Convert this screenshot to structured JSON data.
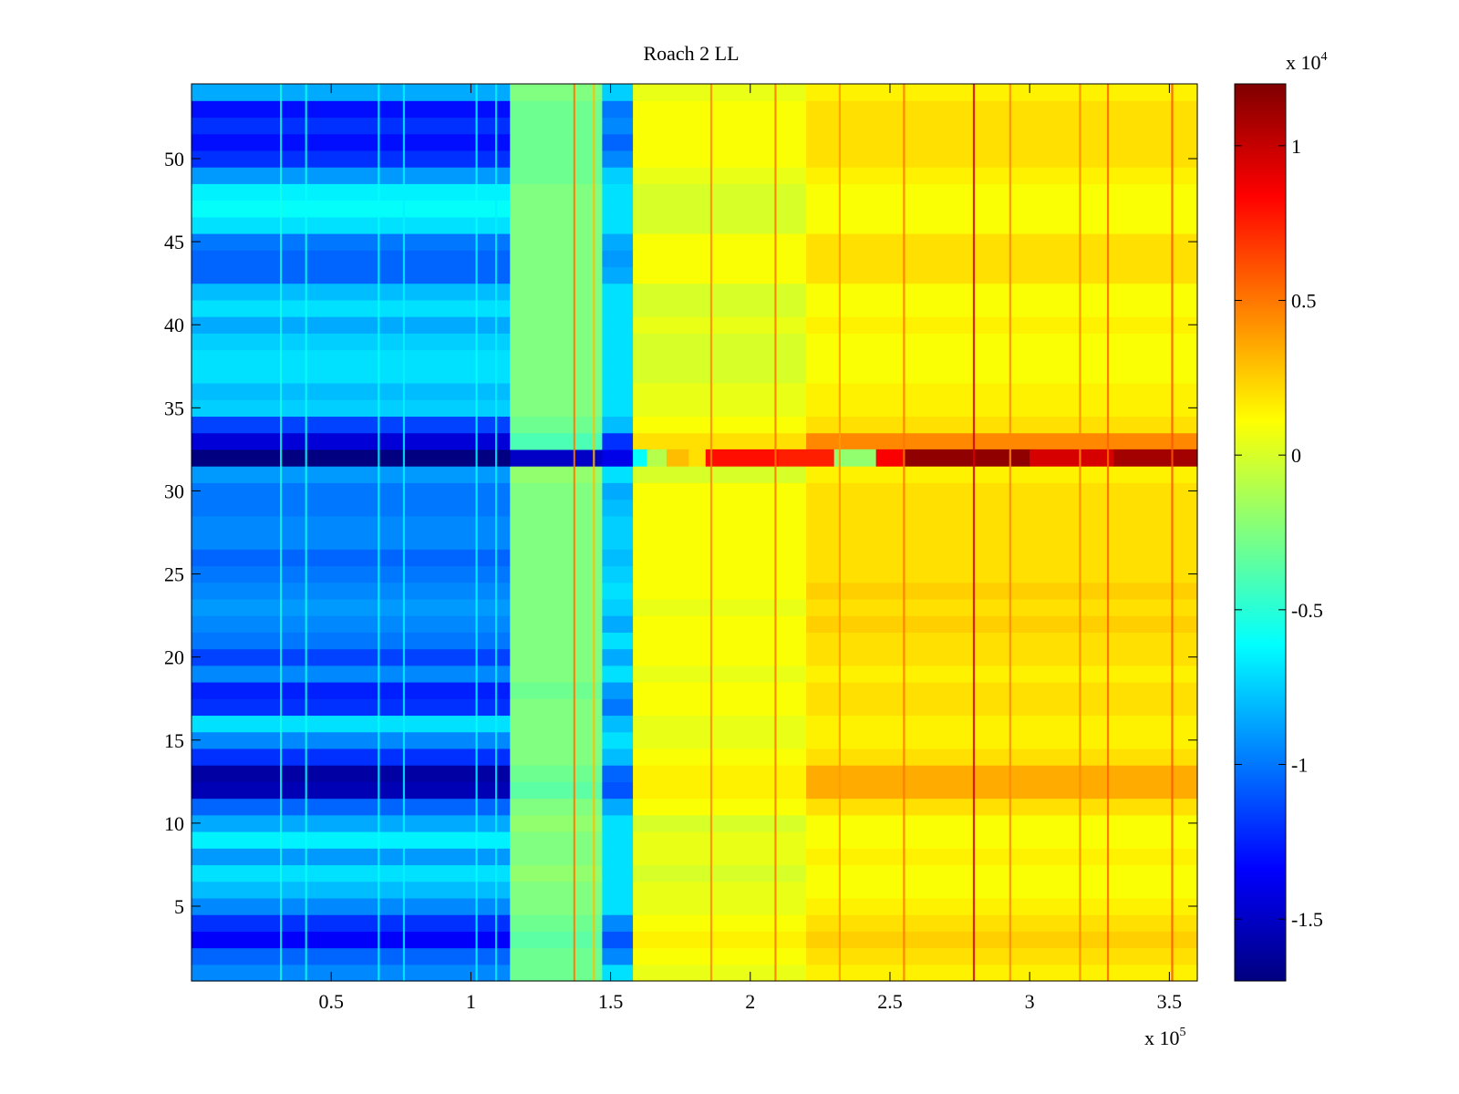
{
  "chart_data": {
    "type": "heatmap",
    "title": "Roach 2 LL",
    "xlabel": "",
    "ylabel": "",
    "x_exponent_label": "x 10",
    "x_exponent_power": "5",
    "xlim": [
      0,
      3.6
    ],
    "ylim": [
      0.5,
      54.5
    ],
    "xticks": [
      {
        "v": 0.5,
        "label": "0.5"
      },
      {
        "v": 1,
        "label": "1"
      },
      {
        "v": 1.5,
        "label": "1.5"
      },
      {
        "v": 2,
        "label": "2"
      },
      {
        "v": 2.5,
        "label": "2.5"
      },
      {
        "v": 3,
        "label": "3"
      },
      {
        "v": 3.5,
        "label": "3.5"
      }
    ],
    "yticks": [
      {
        "v": 5,
        "label": "5"
      },
      {
        "v": 10,
        "label": "10"
      },
      {
        "v": 15,
        "label": "15"
      },
      {
        "v": 20,
        "label": "20"
      },
      {
        "v": 25,
        "label": "25"
      },
      {
        "v": 30,
        "label": "30"
      },
      {
        "v": 35,
        "label": "35"
      },
      {
        "v": 40,
        "label": "40"
      },
      {
        "v": 45,
        "label": "45"
      },
      {
        "v": 50,
        "label": "50"
      }
    ],
    "colorbar": {
      "colormap": "jet",
      "clim": [
        -1.7,
        1.2
      ],
      "exponent_label": "x 10",
      "exponent_power": "4",
      "ticks": [
        {
          "v": -1.5,
          "label": "-1.5"
        },
        {
          "v": -1,
          "label": "-1"
        },
        {
          "v": -0.5,
          "label": "-0.5"
        },
        {
          "v": 0,
          "label": "0"
        },
        {
          "v": 0.5,
          "label": "0.5"
        },
        {
          "v": 1,
          "label": "1"
        }
      ]
    },
    "rows": 54,
    "x_segments": [
      {
        "from": 0.0,
        "to": 1.14,
        "zone": "left"
      },
      {
        "from": 1.14,
        "to": 1.47,
        "zone": "mid"
      },
      {
        "from": 1.47,
        "to": 1.58,
        "zone": "notch"
      },
      {
        "from": 1.58,
        "to": 2.2,
        "zone": "right1"
      },
      {
        "from": 2.2,
        "to": 3.6,
        "zone": "right2"
      }
    ],
    "row_values": {
      "left": [
        -0.95,
        -1.05,
        -1.35,
        -1.2,
        -0.95,
        -0.8,
        -0.7,
        -0.9,
        -0.65,
        -0.85,
        -1.05,
        -1.55,
        -1.6,
        -1.2,
        -0.95,
        -0.7,
        -1.2,
        -1.25,
        -0.95,
        -1.15,
        -1.0,
        -0.95,
        -0.9,
        -0.95,
        -1.0,
        -1.05,
        -0.95,
        -0.95,
        -1.0,
        -1.0,
        -0.9,
        -1.7,
        -1.45,
        -1.15,
        -0.75,
        -0.8,
        -0.7,
        -0.7,
        -0.75,
        -0.85,
        -0.7,
        -0.8,
        -1.05,
        -1.05,
        -1.0,
        -0.7,
        -0.6,
        -0.65,
        -0.9,
        -1.2,
        -1.3,
        -1.2,
        -1.3,
        -0.85
      ],
      "mid": [
        -0.3,
        -0.3,
        -0.35,
        -0.3,
        -0.25,
        -0.25,
        -0.2,
        -0.25,
        -0.25,
        -0.2,
        -0.25,
        -0.35,
        -0.3,
        -0.25,
        -0.25,
        -0.25,
        -0.25,
        -0.3,
        -0.25,
        -0.25,
        -0.25,
        -0.25,
        -0.25,
        -0.25,
        -0.25,
        -0.25,
        -0.25,
        -0.25,
        -0.25,
        -0.25,
        -0.2,
        -1.5,
        -0.4,
        -0.3,
        -0.25,
        -0.25,
        -0.25,
        -0.25,
        -0.25,
        -0.25,
        -0.25,
        -0.25,
        -0.25,
        -0.25,
        -0.25,
        -0.25,
        -0.25,
        -0.25,
        -0.3,
        -0.3,
        -0.3,
        -0.3,
        -0.3,
        -0.25
      ],
      "notch": [
        -0.7,
        -0.95,
        -1.1,
        -0.95,
        -0.7,
        -0.7,
        -0.7,
        -0.7,
        -0.7,
        -0.7,
        -0.85,
        -1.1,
        -1.05,
        -0.8,
        -0.7,
        -0.8,
        -1.0,
        -0.9,
        -0.7,
        -0.85,
        -0.7,
        -0.85,
        -0.75,
        -0.7,
        -0.75,
        -0.8,
        -0.75,
        -0.75,
        -0.8,
        -0.85,
        -0.7,
        -1.4,
        -1.2,
        -0.8,
        -0.7,
        -0.7,
        -0.7,
        -0.7,
        -0.7,
        -0.7,
        -0.7,
        -0.7,
        -0.85,
        -0.9,
        -0.85,
        -0.7,
        -0.7,
        -0.7,
        -0.75,
        -0.95,
        -1.05,
        -0.95,
        -1.0,
        -0.75
      ],
      "right1": [
        0.05,
        0.1,
        0.15,
        0.1,
        0.05,
        0.05,
        0.0,
        0.05,
        0.05,
        0.0,
        0.1,
        0.15,
        0.15,
        0.1,
        0.05,
        0.05,
        0.1,
        0.1,
        0.05,
        0.1,
        0.1,
        0.1,
        0.05,
        0.1,
        0.1,
        0.1,
        0.1,
        0.1,
        0.1,
        0.1,
        0.0,
        0.8,
        0.2,
        0.1,
        0.05,
        0.05,
        0.0,
        0.0,
        0.0,
        0.05,
        0.0,
        0.0,
        0.1,
        0.1,
        0.1,
        0.0,
        0.0,
        0.0,
        0.05,
        0.1,
        0.1,
        0.1,
        0.1,
        0.05
      ],
      "right2": [
        0.15,
        0.2,
        0.25,
        0.2,
        0.15,
        0.1,
        0.1,
        0.15,
        0.1,
        0.1,
        0.2,
        0.35,
        0.35,
        0.2,
        0.15,
        0.15,
        0.2,
        0.2,
        0.15,
        0.2,
        0.2,
        0.25,
        0.2,
        0.25,
        0.2,
        0.2,
        0.2,
        0.2,
        0.2,
        0.2,
        0.15,
        1.15,
        0.45,
        0.2,
        0.15,
        0.15,
        0.1,
        0.1,
        0.1,
        0.15,
        0.1,
        0.1,
        0.2,
        0.2,
        0.2,
        0.1,
        0.1,
        0.1,
        0.15,
        0.2,
        0.2,
        0.2,
        0.2,
        0.15
      ]
    },
    "row32_profile": [
      {
        "from": 1.58,
        "to": 1.63,
        "value": -0.6
      },
      {
        "from": 1.63,
        "to": 1.7,
        "value": -0.1
      },
      {
        "from": 1.7,
        "to": 1.78,
        "value": 0.3
      },
      {
        "from": 1.78,
        "to": 1.84,
        "value": 0.2
      },
      {
        "from": 1.84,
        "to": 2.1,
        "value": 0.8
      },
      {
        "from": 2.1,
        "to": 2.3,
        "value": 0.75
      },
      {
        "from": 2.3,
        "to": 2.45,
        "value": -0.2
      },
      {
        "from": 2.45,
        "to": 2.55,
        "value": 0.85
      },
      {
        "from": 2.55,
        "to": 3.0,
        "value": 1.15
      },
      {
        "from": 3.0,
        "to": 3.3,
        "value": 0.95
      },
      {
        "from": 3.3,
        "to": 3.6,
        "value": 1.1
      }
    ],
    "vertical_streaks": [
      {
        "x": 0.32,
        "value": -0.55
      },
      {
        "x": 0.41,
        "value": -0.6
      },
      {
        "x": 0.67,
        "value": -0.6
      },
      {
        "x": 0.76,
        "value": -0.65
      },
      {
        "x": 1.02,
        "value": -0.6
      },
      {
        "x": 1.09,
        "value": -0.65
      },
      {
        "x": 1.37,
        "value": 0.5
      },
      {
        "x": 1.44,
        "value": 0.3
      },
      {
        "x": 1.86,
        "value": 0.45
      },
      {
        "x": 2.09,
        "value": 0.5
      },
      {
        "x": 2.32,
        "value": 0.4
      },
      {
        "x": 2.55,
        "value": 0.5
      },
      {
        "x": 2.8,
        "value": 0.95
      },
      {
        "x": 2.93,
        "value": 0.45
      },
      {
        "x": 3.18,
        "value": 0.45
      },
      {
        "x": 3.28,
        "value": 0.55
      },
      {
        "x": 3.51,
        "value": 0.6
      }
    ]
  }
}
